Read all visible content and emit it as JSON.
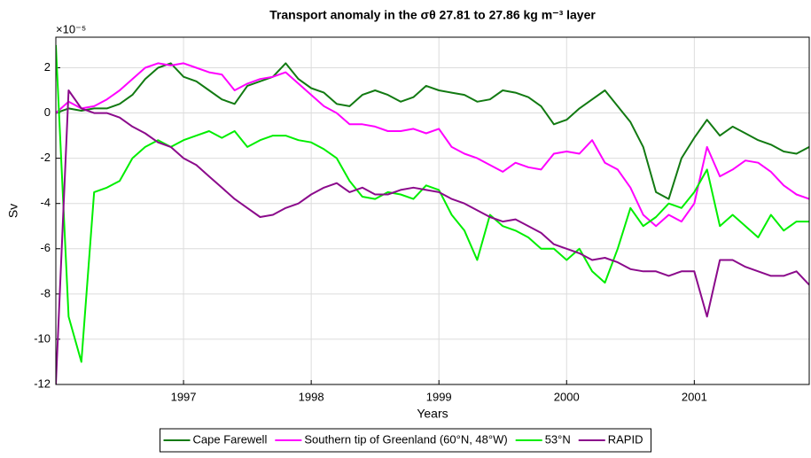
{
  "chart_data": {
    "type": "line",
    "title": "Transport anomaly in the σθ 27.81 to 27.86 kg m⁻³ layer",
    "y_multiplier": "×10⁻⁵",
    "xlabel": "Years",
    "ylabel": "Sv",
    "x": [
      1996.0,
      1996.1,
      1996.2,
      1996.3,
      1996.4,
      1996.5,
      1996.6,
      1996.7,
      1996.8,
      1996.9,
      1997.0,
      1997.1,
      1997.2,
      1997.3,
      1997.4,
      1997.5,
      1997.6,
      1997.7,
      1997.8,
      1997.9,
      1998.0,
      1998.1,
      1998.2,
      1998.3,
      1998.4,
      1998.5,
      1998.6,
      1998.7,
      1998.8,
      1998.9,
      1999.0,
      1999.1,
      1999.2,
      1999.3,
      1999.4,
      1999.5,
      1999.6,
      1999.7,
      1999.8,
      1999.9,
      2000.0,
      2000.1,
      2000.2,
      2000.3,
      2000.4,
      2000.5,
      2000.6,
      2000.7,
      2000.8,
      2000.9,
      2001.0,
      2001.1,
      2001.2,
      2001.3,
      2001.4,
      2001.5,
      2001.6,
      2001.7,
      2001.8,
      2001.9
    ],
    "series": [
      {
        "name": "Cape Farewell",
        "color": "#127a12",
        "values": [
          0,
          0.2,
          0.1,
          0.2,
          0.2,
          0.4,
          0.8,
          1.5,
          2.0,
          2.2,
          1.6,
          1.4,
          1.0,
          0.6,
          0.4,
          1.2,
          1.4,
          1.6,
          2.2,
          1.5,
          1.1,
          0.9,
          0.4,
          0.3,
          0.8,
          1.0,
          0.8,
          0.5,
          0.7,
          1.2,
          1.0,
          0.9,
          0.8,
          0.5,
          0.6,
          1.0,
          0.9,
          0.7,
          0.3,
          -0.5,
          -0.3,
          0.2,
          0.6,
          1.0,
          0.3,
          -0.4,
          -1.5,
          -3.5,
          -3.8,
          -2.0,
          -1.1,
          -0.3,
          -1.0,
          -0.6,
          -0.9,
          -1.2,
          -1.4,
          -1.7,
          -1.8,
          -1.5
        ]
      },
      {
        "name": "Southern tip of Greenland (60°N, 48°W)",
        "color": "#ff00ff",
        "values": [
          0,
          0.5,
          0.2,
          0.3,
          0.6,
          1.0,
          1.5,
          2.0,
          2.2,
          2.1,
          2.2,
          2.0,
          1.8,
          1.7,
          1.0,
          1.3,
          1.5,
          1.6,
          1.8,
          1.3,
          0.8,
          0.3,
          0.0,
          -0.5,
          -0.5,
          -0.6,
          -0.8,
          -0.8,
          -0.7,
          -0.9,
          -0.7,
          -1.5,
          -1.8,
          -2.0,
          -2.3,
          -2.6,
          -2.2,
          -2.4,
          -2.5,
          -1.8,
          -1.7,
          -1.8,
          -1.2,
          -2.2,
          -2.5,
          -3.3,
          -4.5,
          -5.0,
          -4.5,
          -4.8,
          -4.0,
          -1.5,
          -2.8,
          -2.5,
          -2.1,
          -2.2,
          -2.6,
          -3.2,
          -3.6,
          -3.8
        ]
      },
      {
        "name": "53°N",
        "color": "#00ee00",
        "values": [
          3,
          -9,
          -11,
          -3.5,
          -3.3,
          -3.0,
          -2.0,
          -1.5,
          -1.2,
          -1.5,
          -1.2,
          -1.0,
          -0.8,
          -1.1,
          -0.8,
          -1.5,
          -1.2,
          -1.0,
          -1.0,
          -1.2,
          -1.3,
          -1.6,
          -2.0,
          -3.0,
          -3.7,
          -3.8,
          -3.5,
          -3.6,
          -3.8,
          -3.2,
          -3.4,
          -4.5,
          -5.2,
          -6.5,
          -4.5,
          -5.0,
          -5.2,
          -5.5,
          -6.0,
          -6.0,
          -6.5,
          -6.0,
          -7.0,
          -7.5,
          -6.0,
          -4.2,
          -5.0,
          -4.6,
          -4.0,
          -4.2,
          -3.5,
          -2.5,
          -5.0,
          -4.5,
          -5.0,
          -5.5,
          -4.5,
          -5.2,
          -4.8,
          -4.8
        ]
      },
      {
        "name": "RAPID",
        "color": "#8b0a8b",
        "values": [
          -12,
          1.0,
          0.2,
          0.0,
          0.0,
          -0.2,
          -0.6,
          -0.9,
          -1.3,
          -1.5,
          -2.0,
          -2.3,
          -2.8,
          -3.3,
          -3.8,
          -4.2,
          -4.6,
          -4.5,
          -4.2,
          -4.0,
          -3.6,
          -3.3,
          -3.1,
          -3.5,
          -3.3,
          -3.6,
          -3.6,
          -3.4,
          -3.3,
          -3.4,
          -3.5,
          -3.8,
          -4.0,
          -4.3,
          -4.6,
          -4.8,
          -4.7,
          -5.0,
          -5.3,
          -5.8,
          -6.0,
          -6.2,
          -6.5,
          -6.4,
          -6.6,
          -6.9,
          -7.0,
          -7.0,
          -7.2,
          -7.0,
          -7.0,
          -9.0,
          -6.5,
          -6.5,
          -6.8,
          -7.0,
          -7.2,
          -7.2,
          -7.0,
          -7.6
        ]
      }
    ],
    "xlim": [
      1996.0,
      2001.9
    ],
    "xticks": [
      1997,
      1998,
      1999,
      2000,
      2001
    ],
    "ylim": [
      -12,
      3.35
    ],
    "yticks": [
      -12,
      -10,
      -8,
      -6,
      -4,
      -2,
      0,
      2
    ],
    "grid": true,
    "legend": "bottom"
  }
}
